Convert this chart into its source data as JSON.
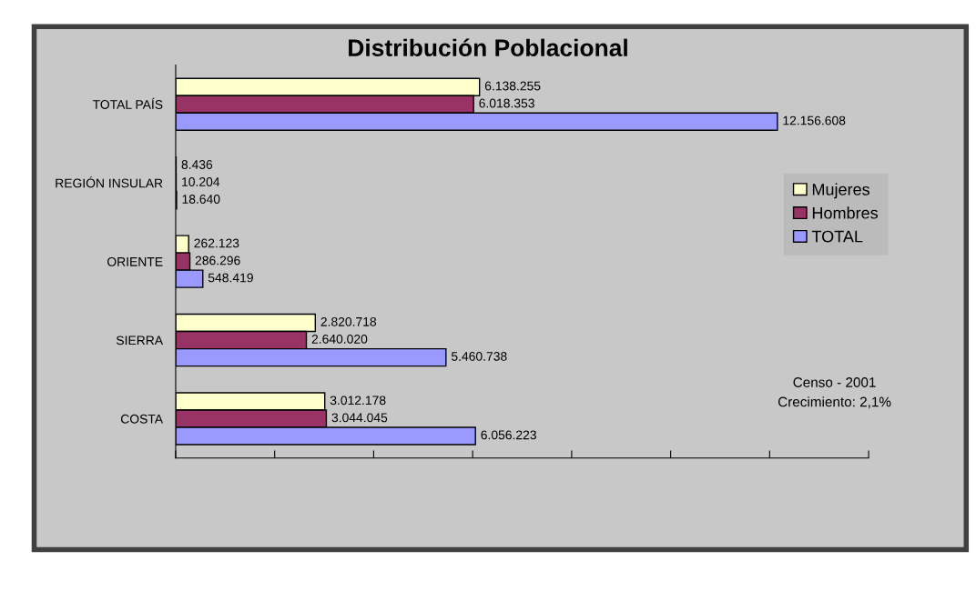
{
  "chart_data": {
    "type": "bar",
    "orientation": "horizontal",
    "title": "Distribución Poblacional",
    "categories": [
      "TOTAL PAÍS",
      "REGIÓN INSULAR",
      "ORIENTE",
      "SIERRA",
      "COSTA"
    ],
    "series": [
      {
        "name": "Mujeres",
        "color": "#ffffcc",
        "values": [
          6138255,
          8436,
          262123,
          2820718,
          3012178
        ],
        "value_labels": [
          "6.138.255",
          "8.436",
          "262.123",
          "2.820.718",
          "3.012.178"
        ]
      },
      {
        "name": "Hombres",
        "color": "#993366",
        "values": [
          6018353,
          10204,
          286296,
          2640020,
          3044045
        ],
        "value_labels": [
          "6.018.353",
          "10.204",
          "286.296",
          "2.640.020",
          "3.044.045"
        ]
      },
      {
        "name": "TOTAL",
        "color": "#9999ff",
        "values": [
          12156608,
          18640,
          548419,
          5460738,
          6056223
        ],
        "value_labels": [
          "12.156.608",
          "18.640",
          "548.419",
          "5.460.738",
          "6.056.223"
        ]
      }
    ],
    "xlim": [
      0,
      14000000
    ],
    "xticks": [
      {
        "value": 0,
        "label": null
      },
      {
        "value": 2000000,
        "label": null
      },
      {
        "value": 4000000,
        "label": null
      },
      {
        "value": 6000000,
        "label": null
      },
      {
        "value": 8000000,
        "label": null
      },
      {
        "value": 10000000,
        "label": null
      },
      {
        "value": 12000000,
        "label": null
      },
      {
        "value": 14000000,
        "label": null
      }
    ],
    "legend": "right",
    "grid": false,
    "annotations": [
      "Censo - 2001",
      "Crecimiento: 2,1%"
    ]
  }
}
